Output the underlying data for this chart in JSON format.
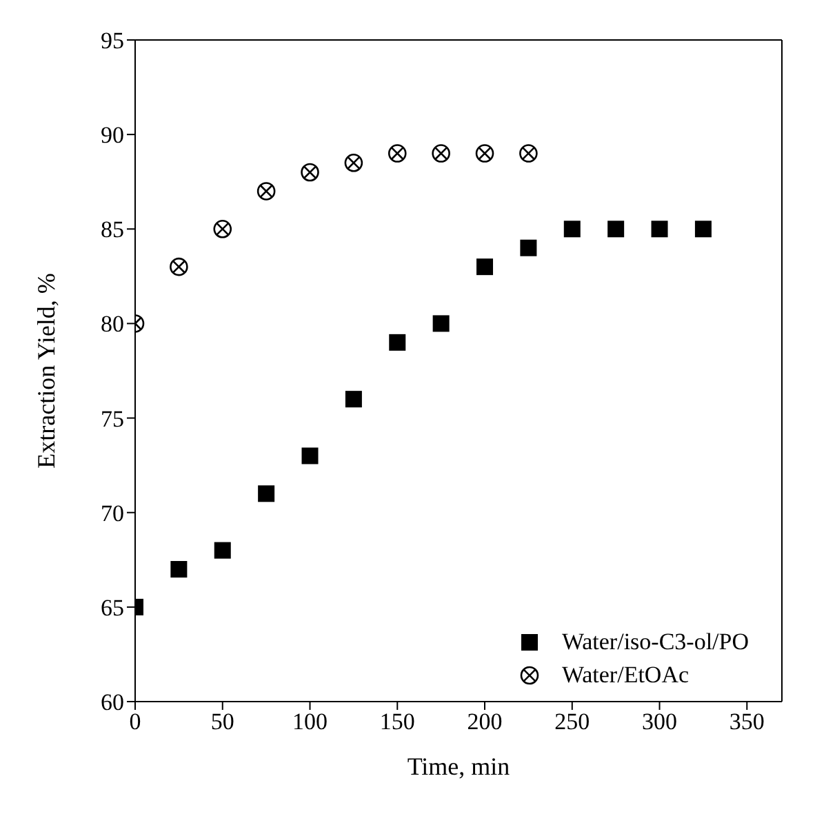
{
  "chart_data": {
    "type": "scatter",
    "xlabel": "Time, min",
    "ylabel": "Extraction Yield, %",
    "xlim": [
      0,
      370
    ],
    "xticks": [
      0,
      50,
      100,
      150,
      200,
      250,
      300,
      350
    ],
    "ylim": [
      60,
      95
    ],
    "yticks": [
      60,
      65,
      70,
      75,
      80,
      85,
      90,
      95
    ],
    "grid": false,
    "legend": "bottom right",
    "series": [
      {
        "name": "Water/iso-C3-ol/PO",
        "color": "#000000",
        "marker": "square",
        "x": [
          0,
          25,
          50,
          75,
          100,
          125,
          150,
          175,
          200,
          225,
          250,
          275,
          300,
          325
        ],
        "values": [
          65,
          67,
          68,
          71,
          73,
          76,
          79,
          80,
          83,
          84,
          85,
          85,
          85,
          85
        ]
      },
      {
        "name": "Water/EtOAc",
        "color": "#000000",
        "marker": "cross",
        "x": [
          0,
          25,
          50,
          75,
          100,
          125,
          150,
          175,
          200,
          225
        ],
        "values": [
          80,
          83,
          85,
          87,
          88,
          88.5,
          89,
          89,
          89,
          89
        ]
      }
    ]
  }
}
